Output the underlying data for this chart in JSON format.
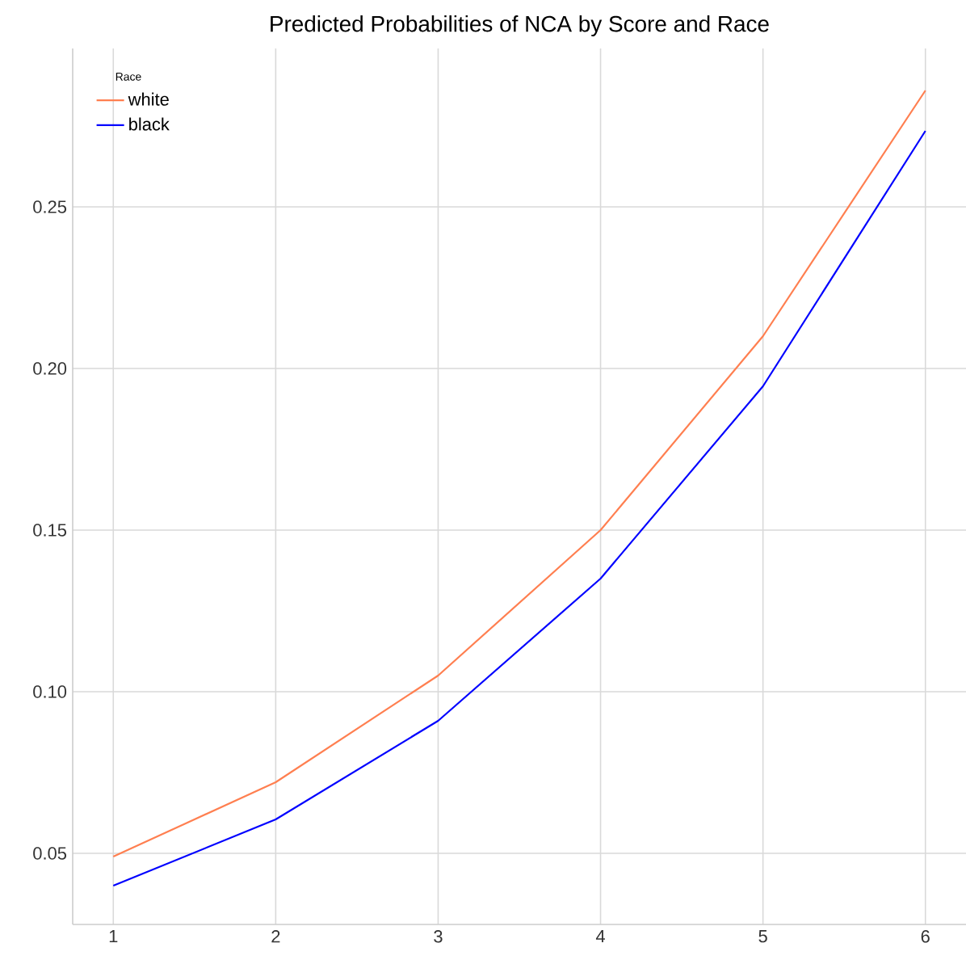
{
  "chart_data": {
    "type": "line",
    "title": "Predicted Probabilities of NCA by Score and Race",
    "legend_title": "Race",
    "x": [
      1,
      2,
      3,
      4,
      5,
      6
    ],
    "series": [
      {
        "name": "white",
        "color": "#ff7f50",
        "values": [
          0.049,
          0.072,
          0.105,
          0.15,
          0.21,
          0.286
        ]
      },
      {
        "name": "black",
        "color": "#0000ff",
        "values": [
          0.04,
          0.0605,
          0.091,
          0.135,
          0.1945,
          0.2735
        ]
      }
    ],
    "xlim": [
      0.75,
      6.25
    ],
    "ylim": [
      0.028,
      0.299
    ],
    "xticks": [
      1,
      2,
      3,
      4,
      5,
      6
    ],
    "yticks": [
      {
        "value": 0.05,
        "label": "0.05"
      },
      {
        "value": 0.1,
        "label": "0.10"
      },
      {
        "value": 0.15,
        "label": "0.15"
      },
      {
        "value": 0.2,
        "label": "0.20"
      },
      {
        "value": 0.25,
        "label": "0.25"
      }
    ],
    "grid": true,
    "legend": "top left",
    "marker": "none",
    "line_style": "solid"
  }
}
